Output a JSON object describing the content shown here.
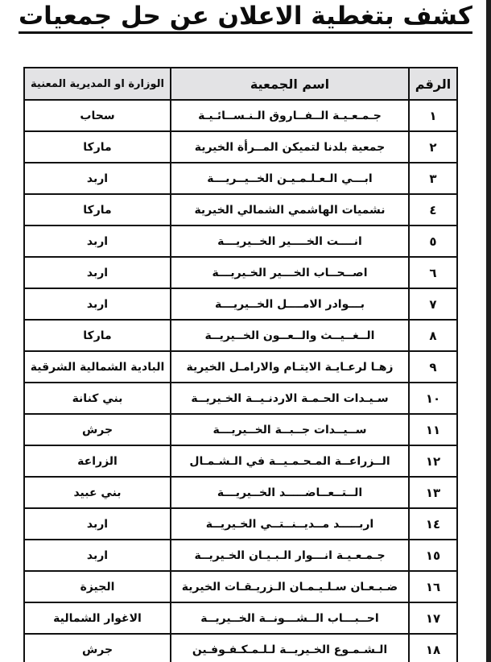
{
  "title": "كشف بتغطية الاعلان عن حل جمعيات",
  "table": {
    "headers": {
      "number": "الرقم",
      "name": "اسم الجمعية",
      "ministry": "الوزارة او المديرية المعنية"
    },
    "rows": [
      {
        "number": "١",
        "name": "جـمـعـيـة الــفــاروق الـنـســائـيـة",
        "ministry": "سحاب"
      },
      {
        "number": "٢",
        "name": "جمعية بلدنا لتميكن المــرأة الخيرية",
        "ministry": "ماركا"
      },
      {
        "number": "٣",
        "name": "ابـــي الـعـلـمـيـن الخــيــريـــة",
        "ministry": "اربد"
      },
      {
        "number": "٤",
        "name": "نشميات الهاشمي الشمالي الخيرية",
        "ministry": "ماركا"
      },
      {
        "number": "٥",
        "name": "انــــت الخــــير الخــيريـــة",
        "ministry": "اربد"
      },
      {
        "number": "٦",
        "name": "اصــحــاب الخـــير الخـيريـــة",
        "ministry": "اربد"
      },
      {
        "number": "٧",
        "name": "بـــوادر الامــــل الخــيريـــة",
        "ministry": "اربد"
      },
      {
        "number": "٨",
        "name": "الــغــيــث والــعــون الخــيريــة",
        "ministry": "ماركا"
      },
      {
        "number": "٩",
        "name": "زهـا لرعـايـة الايتـام والارامـل الخيرية",
        "ministry": "البادية الشمالية الشرقية"
      },
      {
        "number": "١٠",
        "name": "سـيـدات الحـمـة الاردنـيــة الخـيريــة",
        "ministry": "بني كنانة"
      },
      {
        "number": "١١",
        "name": "ســيــدات جــبــة الخــيريـــة",
        "ministry": "جرش"
      },
      {
        "number": "١٢",
        "name": "الــزراعــة المـحـمـيــة في الـشـمـال",
        "ministry": "الزراعة"
      },
      {
        "number": "١٣",
        "name": "الــتــعــاضـــــد الخــيريـــة",
        "ministry": "بني عبيد"
      },
      {
        "number": "١٤",
        "name": "اربـــــد مــديــنــتــي الخـيريــة",
        "ministry": "اربد"
      },
      {
        "number": "١٥",
        "name": "جـمـعـيـة انـــوار الـبـيـان الخـيريــة",
        "ministry": "اربد"
      },
      {
        "number": "١٦",
        "name": "ضـبـعـان سـلـيـمـان الـزريـقـات الخيرية",
        "ministry": "الجيزة"
      },
      {
        "number": "١٧",
        "name": "احــبـــاب الــشـــونــة الخــيريــة",
        "ministry": "الاغوار الشمالية"
      },
      {
        "number": "١٨",
        "name": "الـشـمـوع الخـيريــة لـلـمـكـفـوفـين",
        "ministry": "جرش"
      }
    ]
  },
  "colors": {
    "row_shade": "#e3e3e5",
    "border": "#111111",
    "edge_bar": "#1e1e1e",
    "text": "#0c0c0c"
  }
}
